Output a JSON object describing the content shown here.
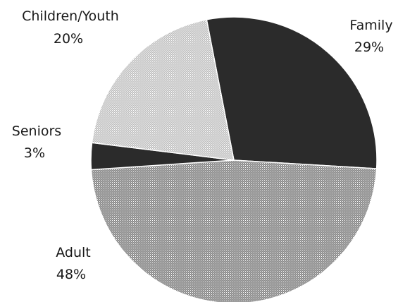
{
  "chart_data": {
    "type": "pie",
    "start_angle_deg": -11,
    "direction": "clockwise",
    "slices": [
      {
        "label": "Family",
        "value": 29,
        "value_label": "29%",
        "color": "#2b2b2b",
        "pattern": "solid"
      },
      {
        "label": "Adult",
        "value": 48,
        "value_label": "48%",
        "color": "#a9a9a9",
        "pattern": "stipple"
      },
      {
        "label": "Seniors",
        "value": 3,
        "value_label": "3%",
        "color": "#2b2b2b",
        "pattern": "solid"
      },
      {
        "label": "Children/Youth",
        "value": 20,
        "value_label": "20%",
        "color": "#c9c9c9",
        "pattern": "stipple"
      }
    ]
  }
}
